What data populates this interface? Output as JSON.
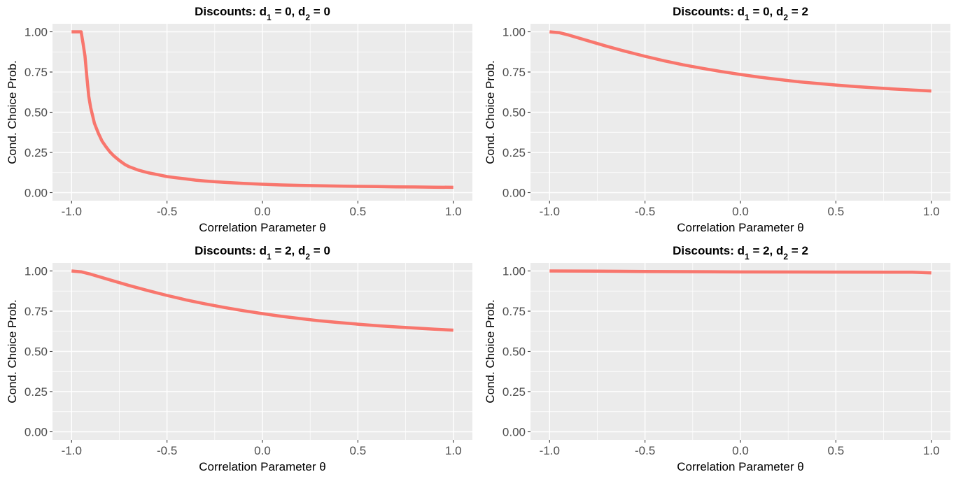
{
  "chart_data": [
    {
      "type": "line",
      "title_parts": [
        "Discounts: d",
        "1",
        " = 0, d",
        "2",
        " = 0"
      ],
      "xlabel": "Correlation Parameter θ",
      "ylabel": "Cond. Choice Prob.",
      "xlim": [
        -1.1,
        1.1
      ],
      "ylim": [
        -0.05,
        1.05
      ],
      "xticks": [
        -1.0,
        -0.5,
        0.0,
        0.5,
        1.0
      ],
      "xtick_labels": [
        "-1.0",
        "-0.5",
        "0.0",
        "0.5",
        "1.0"
      ],
      "yticks": [
        0.0,
        0.25,
        0.5,
        0.75,
        1.0
      ],
      "ytick_labels": [
        "0.00",
        "0.25",
        "0.50",
        "0.75",
        "1.00"
      ],
      "grid": true,
      "color": "#F8766D",
      "series": [
        {
          "x": [
            -1.0,
            -0.95,
            -0.94,
            -0.93,
            -0.92,
            -0.91,
            -0.9,
            -0.88,
            -0.86,
            -0.84,
            -0.82,
            -0.8,
            -0.78,
            -0.75,
            -0.72,
            -0.7,
            -0.65,
            -0.6,
            -0.55,
            -0.5,
            -0.45,
            -0.4,
            -0.35,
            -0.3,
            -0.25,
            -0.2,
            -0.1,
            0.0,
            0.1,
            0.2,
            0.3,
            0.4,
            0.5,
            0.6,
            0.7,
            0.8,
            0.9,
            1.0
          ],
          "y": [
            1.0,
            1.0,
            0.93,
            0.85,
            0.72,
            0.6,
            0.53,
            0.43,
            0.37,
            0.32,
            0.285,
            0.255,
            0.23,
            0.2,
            0.175,
            0.162,
            0.14,
            0.124,
            0.112,
            0.1,
            0.092,
            0.085,
            0.078,
            0.072,
            0.068,
            0.064,
            0.058,
            0.052,
            0.048,
            0.045,
            0.043,
            0.041,
            0.039,
            0.038,
            0.036,
            0.035,
            0.034,
            0.033
          ]
        }
      ]
    },
    {
      "type": "line",
      "title_parts": [
        "Discounts: d",
        "1",
        " = 0, d",
        "2",
        " = 2"
      ],
      "xlabel": "Correlation Parameter θ",
      "ylabel": "Cond. Choice Prob.",
      "xlim": [
        -1.1,
        1.1
      ],
      "ylim": [
        -0.05,
        1.05
      ],
      "xticks": [
        -1.0,
        -0.5,
        0.0,
        0.5,
        1.0
      ],
      "xtick_labels": [
        "-1.0",
        "-0.5",
        "0.0",
        "0.5",
        "1.0"
      ],
      "yticks": [
        0.0,
        0.25,
        0.5,
        0.75,
        1.0
      ],
      "ytick_labels": [
        "0.00",
        "0.25",
        "0.50",
        "0.75",
        "1.00"
      ],
      "grid": true,
      "color": "#F8766D",
      "series": [
        {
          "x": [
            -1.0,
            -0.95,
            -0.9,
            -0.8,
            -0.7,
            -0.6,
            -0.5,
            -0.4,
            -0.3,
            -0.2,
            -0.1,
            0.0,
            0.1,
            0.2,
            0.3,
            0.4,
            0.5,
            0.6,
            0.7,
            0.8,
            0.9,
            1.0
          ],
          "y": [
            1.0,
            0.995,
            0.98,
            0.945,
            0.91,
            0.878,
            0.848,
            0.82,
            0.795,
            0.773,
            0.753,
            0.735,
            0.718,
            0.704,
            0.69,
            0.679,
            0.669,
            0.66,
            0.652,
            0.645,
            0.638,
            0.632
          ]
        }
      ]
    },
    {
      "type": "line",
      "title_parts": [
        "Discounts: d",
        "1",
        " = 2, d",
        "2",
        " = 0"
      ],
      "xlabel": "Correlation Parameter θ",
      "ylabel": "Cond. Choice Prob.",
      "xlim": [
        -1.1,
        1.1
      ],
      "ylim": [
        -0.05,
        1.05
      ],
      "xticks": [
        -1.0,
        -0.5,
        0.0,
        0.5,
        1.0
      ],
      "xtick_labels": [
        "-1.0",
        "-0.5",
        "0.0",
        "0.5",
        "1.0"
      ],
      "yticks": [
        0.0,
        0.25,
        0.5,
        0.75,
        1.0
      ],
      "ytick_labels": [
        "0.00",
        "0.25",
        "0.50",
        "0.75",
        "1.00"
      ],
      "grid": true,
      "color": "#F8766D",
      "series": [
        {
          "x": [
            -1.0,
            -0.95,
            -0.9,
            -0.8,
            -0.7,
            -0.6,
            -0.5,
            -0.4,
            -0.3,
            -0.2,
            -0.1,
            0.0,
            0.1,
            0.2,
            0.3,
            0.4,
            0.5,
            0.6,
            0.7,
            0.8,
            0.9,
            1.0
          ],
          "y": [
            1.0,
            0.995,
            0.98,
            0.945,
            0.91,
            0.878,
            0.848,
            0.82,
            0.795,
            0.773,
            0.753,
            0.735,
            0.718,
            0.704,
            0.69,
            0.679,
            0.669,
            0.66,
            0.652,
            0.645,
            0.638,
            0.632
          ]
        }
      ]
    },
    {
      "type": "line",
      "title_parts": [
        "Discounts: d",
        "1",
        " = 2, d",
        "2",
        " = 2"
      ],
      "xlabel": "Correlation Parameter θ",
      "ylabel": "Cond. Choice Prob.",
      "xlim": [
        -1.1,
        1.1
      ],
      "ylim": [
        -0.05,
        1.05
      ],
      "xticks": [
        -1.0,
        -0.5,
        0.0,
        0.5,
        1.0
      ],
      "xtick_labels": [
        "-1.0",
        "-0.5",
        "0.0",
        "0.5",
        "1.0"
      ],
      "yticks": [
        0.0,
        0.25,
        0.5,
        0.75,
        1.0
      ],
      "ytick_labels": [
        "0.00",
        "0.25",
        "0.50",
        "0.75",
        "1.00"
      ],
      "grid": true,
      "color": "#F8766D",
      "series": [
        {
          "x": [
            -1.0,
            -0.75,
            -0.5,
            -0.1,
            0.0,
            0.5,
            0.9,
            1.0
          ],
          "y": [
            1.0,
            0.999,
            0.997,
            0.995,
            0.994,
            0.993,
            0.992,
            0.988
          ]
        }
      ]
    }
  ]
}
